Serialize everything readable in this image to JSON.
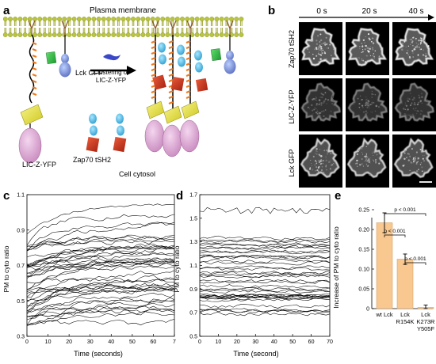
{
  "panels": {
    "a": {
      "letter": "a",
      "membrane_label": "Plasma membrane",
      "lck_label": "Lck GFP",
      "arrow_label_line1": "Clustering of",
      "arrow_label_line2": "LIC-Z-YFP",
      "licz_label": "LIC-Z-YFP",
      "zap_label": "Zap70 tSH2",
      "cytosol_label": "Cell cytosol"
    },
    "b": {
      "letter": "b",
      "times": [
        "0 s",
        "20 s",
        "40 s"
      ],
      "rows": [
        "Zap70 tSH2",
        "LIC-Z-YFP",
        "Lck GFP"
      ]
    },
    "c": {
      "letter": "c",
      "ylabel": "PM to cyto ratio",
      "xlabel": "Time (seconds)",
      "yticks": [
        "0.3",
        "0.5",
        "0.7",
        "0.9",
        "1.1"
      ],
      "xticks": [
        "0",
        "10",
        "20",
        "30",
        "40",
        "50",
        "60",
        "7"
      ]
    },
    "d": {
      "letter": "d",
      "ylabel": "PM to cyto ratio",
      "xlabel": "Time (second)",
      "yticks": [
        "0.5",
        "0.7",
        "0.9",
        "1.1",
        "1.3",
        "1.5",
        "1.7"
      ],
      "xticks": [
        "0",
        "10",
        "20",
        "30",
        "40",
        "50",
        "60",
        "70"
      ]
    },
    "e": {
      "letter": "e",
      "ylabel": "Increase of PM to cyto ratio",
      "yticks": [
        "0",
        "0.05",
        "0.10",
        "0.15",
        "0.20",
        "0.25"
      ],
      "sig_labels": [
        "p < 0.001",
        "p < 0.001",
        "p < 0.001"
      ],
      "bar_color": "#f9c890"
    }
  },
  "chart_data": [
    {
      "panel": "c",
      "type": "line",
      "xlabel": "Time (seconds)",
      "ylabel": "PM to cyto ratio",
      "xlim": [
        0,
        70
      ],
      "ylim": [
        0.3,
        1.1
      ]
    },
    {
      "panel": "d",
      "type": "line",
      "xlabel": "Time (second)",
      "ylabel": "PM to cyto ratio",
      "xlim": [
        0,
        70
      ],
      "ylim": [
        0.5,
        1.7
      ]
    },
    {
      "panel": "e",
      "type": "bar",
      "categories": [
        "wt Lck",
        "Lck R154K",
        "Lck K273R Y505F"
      ],
      "category_lines": [
        [
          "wt Lck"
        ],
        [
          "Lck",
          "R154K"
        ],
        [
          "Lck",
          "K273R",
          "Y505F"
        ]
      ],
      "values": [
        0.217,
        0.125,
        0.003
      ],
      "errors": [
        0.025,
        0.013,
        0.006
      ],
      "ylabel": "Increase of PM to cyto ratio",
      "ylim": [
        0,
        0.25
      ],
      "comparisons": [
        {
          "from": 0,
          "to": 1,
          "label": "p < 0.001"
        },
        {
          "from": 0,
          "to": 2,
          "label": "p < 0.001"
        },
        {
          "from": 1,
          "to": 2,
          "label": "p < 0.001"
        }
      ]
    }
  ]
}
